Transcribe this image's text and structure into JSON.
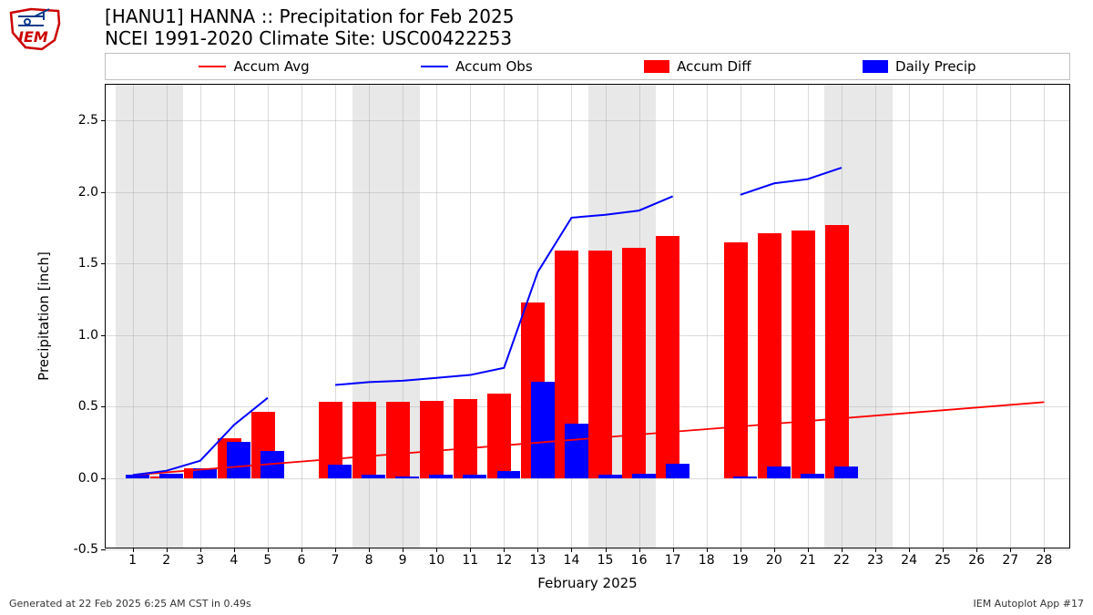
{
  "title_line1": "[HANU1] HANNA :: Precipitation for Feb 2025",
  "title_line2": "NCEI 1991-2020 Climate Site: USC00422253",
  "xlabel": "February 2025",
  "ylabel": "Precipitation [inch]",
  "footer_left": "Generated at 22 Feb 2025 6:25 AM CST in 0.49s",
  "footer_right": "IEM Autoplot App #17",
  "legend": {
    "accum_avg": "Accum Avg",
    "accum_obs": "Accum Obs",
    "accum_diff": "Accum Diff",
    "daily_precip": "Daily Precip"
  },
  "colors": {
    "accum_avg": "#ff0000",
    "accum_obs": "#0000ff",
    "accum_diff": "#ff0000",
    "daily_precip": "#0000ff",
    "weekend_bg": "#e6e6e6",
    "grid": "#b0b0b0",
    "text": "#000000",
    "bg": "#ffffff"
  },
  "chart": {
    "type": "bar+line",
    "x_min": 0.2,
    "x_max": 28.8,
    "y_min": -0.5,
    "y_max": 2.75,
    "y_ticks": [
      -0.5,
      0.0,
      0.5,
      1.0,
      1.5,
      2.0,
      2.5
    ],
    "x_ticks_step": 1,
    "days": [
      1,
      2,
      3,
      4,
      5,
      6,
      7,
      8,
      9,
      10,
      11,
      12,
      13,
      14,
      15,
      16,
      17,
      18,
      19,
      20,
      21,
      22,
      23,
      24,
      25,
      26,
      27,
      28
    ],
    "weekend_days": [
      1,
      2,
      8,
      9,
      15,
      16,
      22,
      23
    ],
    "bar_width": 0.7,
    "daily_precip": [
      0.02,
      0.03,
      0.07,
      0.25,
      0.19,
      null,
      0.09,
      0.02,
      0.01,
      0.02,
      0.02,
      0.05,
      0.67,
      0.38,
      0.02,
      0.03,
      0.1,
      null,
      0.01,
      0.08,
      0.03,
      0.08
    ],
    "accum_avg": {
      "x": [
        1,
        28
      ],
      "y": [
        0.02,
        0.53
      ]
    },
    "accum_obs_segments": [
      {
        "x": [
          1,
          2,
          3,
          4,
          5
        ],
        "y": [
          0.02,
          0.05,
          0.12,
          0.37,
          0.56
        ]
      },
      {
        "x": [
          7,
          8,
          9,
          10,
          11,
          12,
          13,
          14,
          15,
          16,
          17
        ],
        "y": [
          0.65,
          0.67,
          0.68,
          0.7,
          0.72,
          0.77,
          1.44,
          1.82,
          1.84,
          1.87,
          1.97
        ]
      },
      {
        "x": [
          19,
          20,
          21,
          22
        ],
        "y": [
          1.98,
          2.06,
          2.09,
          2.17
        ]
      }
    ],
    "accum_diff": [
      0.0,
      0.01,
      0.07,
      0.28,
      0.46,
      null,
      0.53,
      0.53,
      0.53,
      0.54,
      0.55,
      0.59,
      1.23,
      1.59,
      1.59,
      1.61,
      1.69,
      null,
      1.65,
      1.71,
      1.73,
      1.77
    ]
  },
  "logo_colors": {
    "outline": "#cc0000",
    "inner": "#0a3a8a"
  }
}
